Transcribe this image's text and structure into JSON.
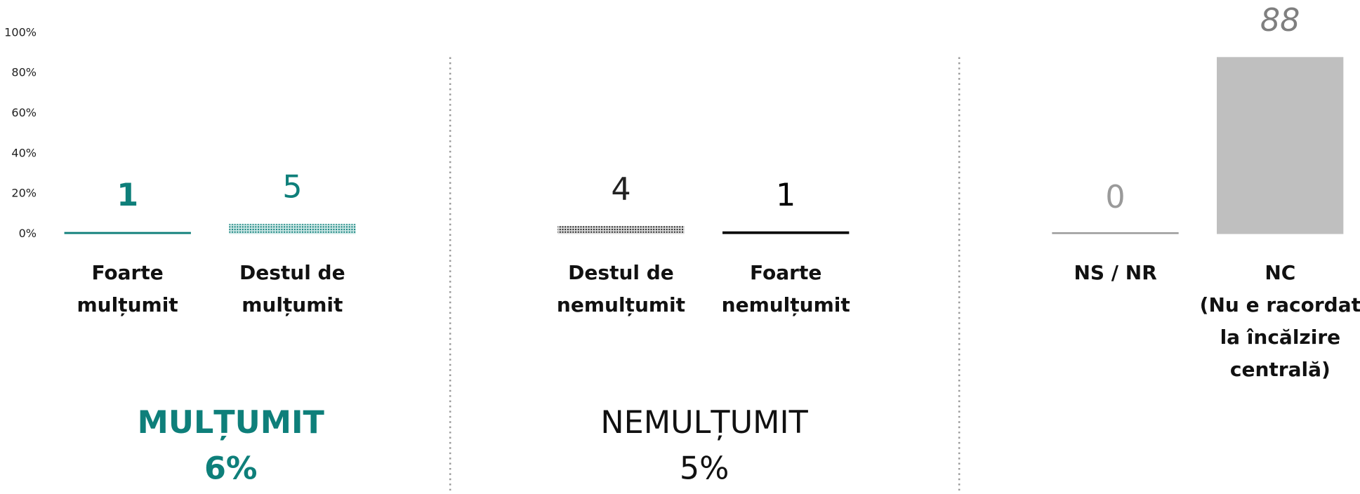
{
  "chart_data": {
    "type": "bar",
    "categories": [
      "Foarte\nmulțumit",
      "Destul de\nmulțumit",
      "Destul de\nnemulțumit",
      "Foarte\nnemulțumit",
      "NS / NR",
      "NC\n(Nu e racordat\nla încălzire\ncentrală)"
    ],
    "values": [
      1,
      5,
      4,
      1,
      0,
      88
    ],
    "colors": [
      "#0e7f7a",
      "#0e7f7a",
      "#222222",
      "#000000",
      "#9a9a9a",
      "#bfbfbf"
    ],
    "bar_styles": [
      "line",
      "dotted",
      "dotted",
      "line",
      "line",
      "solid"
    ],
    "ylim": [
      0,
      100
    ],
    "yticks": [
      {
        "value": 0,
        "label": "0%"
      },
      {
        "value": 20,
        "label": "20%"
      },
      {
        "value": 40,
        "label": "40%"
      },
      {
        "value": 60,
        "label": "60%"
      },
      {
        "value": 80,
        "label": "80%"
      },
      {
        "value": 100,
        "label": "100%"
      }
    ],
    "groups": [
      {
        "label": "MULȚUMIT",
        "total": 6,
        "total_label": "6%",
        "color": "#0e7f7a"
      },
      {
        "label": "NEMULȚUMIT",
        "total": 5,
        "total_label": "5%",
        "color": "#111111"
      }
    ]
  }
}
